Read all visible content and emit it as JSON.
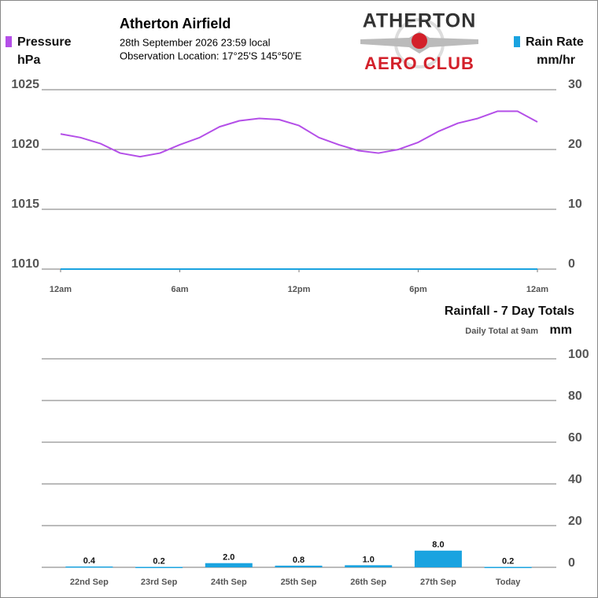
{
  "header": {
    "title": "Atherton Airfield",
    "date": "28th September 2026  23:59 local",
    "location": "Observation Location:  17°25'S 145°50'E"
  },
  "logo": {
    "line1": "ATHERTON",
    "line2": "AERO CLUB"
  },
  "chart_data": [
    {
      "type": "line",
      "x": [
        0,
        1,
        2,
        3,
        4,
        5,
        6,
        7,
        8,
        9,
        10,
        11,
        12,
        13,
        14,
        15,
        16,
        17,
        18,
        19,
        20,
        21,
        22,
        23,
        24
      ],
      "xlim": [
        0,
        24
      ],
      "xticks": [
        {
          "value": 0,
          "label": "12am"
        },
        {
          "value": 6,
          "label": "6am"
        },
        {
          "value": 12,
          "label": "12pm"
        },
        {
          "value": 18,
          "label": "6pm"
        },
        {
          "value": 24,
          "label": "12am"
        }
      ],
      "y_label": "hPa",
      "y2_label": "mm/hr",
      "ylim": [
        1010,
        1025
      ],
      "yticks": [
        1010,
        1015,
        1020,
        1025
      ],
      "y2lim": [
        0,
        30
      ],
      "y2ticks": [
        0,
        10,
        20,
        30
      ],
      "grid": true,
      "series": [
        {
          "name": "Pressure",
          "color": "#b44fe8",
          "values": [
            1021.3,
            1021.0,
            1020.5,
            1019.7,
            1019.4,
            1019.7,
            1020.4,
            1021.0,
            1021.9,
            1022.4,
            1022.6,
            1022.5,
            1022.0,
            1021.0,
            1020.4,
            1019.9,
            1019.7,
            1020.0,
            1020.6,
            1021.5,
            1022.2,
            1022.6,
            1023.2,
            1023.2,
            1022.3
          ]
        },
        {
          "name": "Rain Rate",
          "color": "#1aa3e0",
          "axis": "y2",
          "values": [
            0,
            0,
            0,
            0,
            0,
            0,
            0,
            0,
            0,
            0,
            0,
            0,
            0,
            0,
            0,
            0,
            0,
            0,
            0,
            0,
            0,
            0,
            0,
            0,
            0
          ]
        }
      ]
    },
    {
      "type": "bar",
      "title": "Rainfall - 7 Day Totals",
      "subtitle": "Daily Total at 9am",
      "y_label": "mm",
      "categories": [
        "22nd Sep",
        "23rd Sep",
        "24th Sep",
        "25th Sep",
        "26th Sep",
        "27th Sep",
        "Today"
      ],
      "values": [
        0.4,
        0.2,
        2,
        0.8,
        1,
        8,
        0.2
      ],
      "value_labels": [
        "0.4",
        "0.2",
        "2.0",
        "0.8",
        "1.0",
        "8.0",
        "0.2"
      ],
      "color": "#1aa3e0",
      "ylim": [
        0,
        100
      ],
      "yticks": [
        0,
        20,
        40,
        60,
        80,
        100
      ],
      "grid": true
    }
  ]
}
